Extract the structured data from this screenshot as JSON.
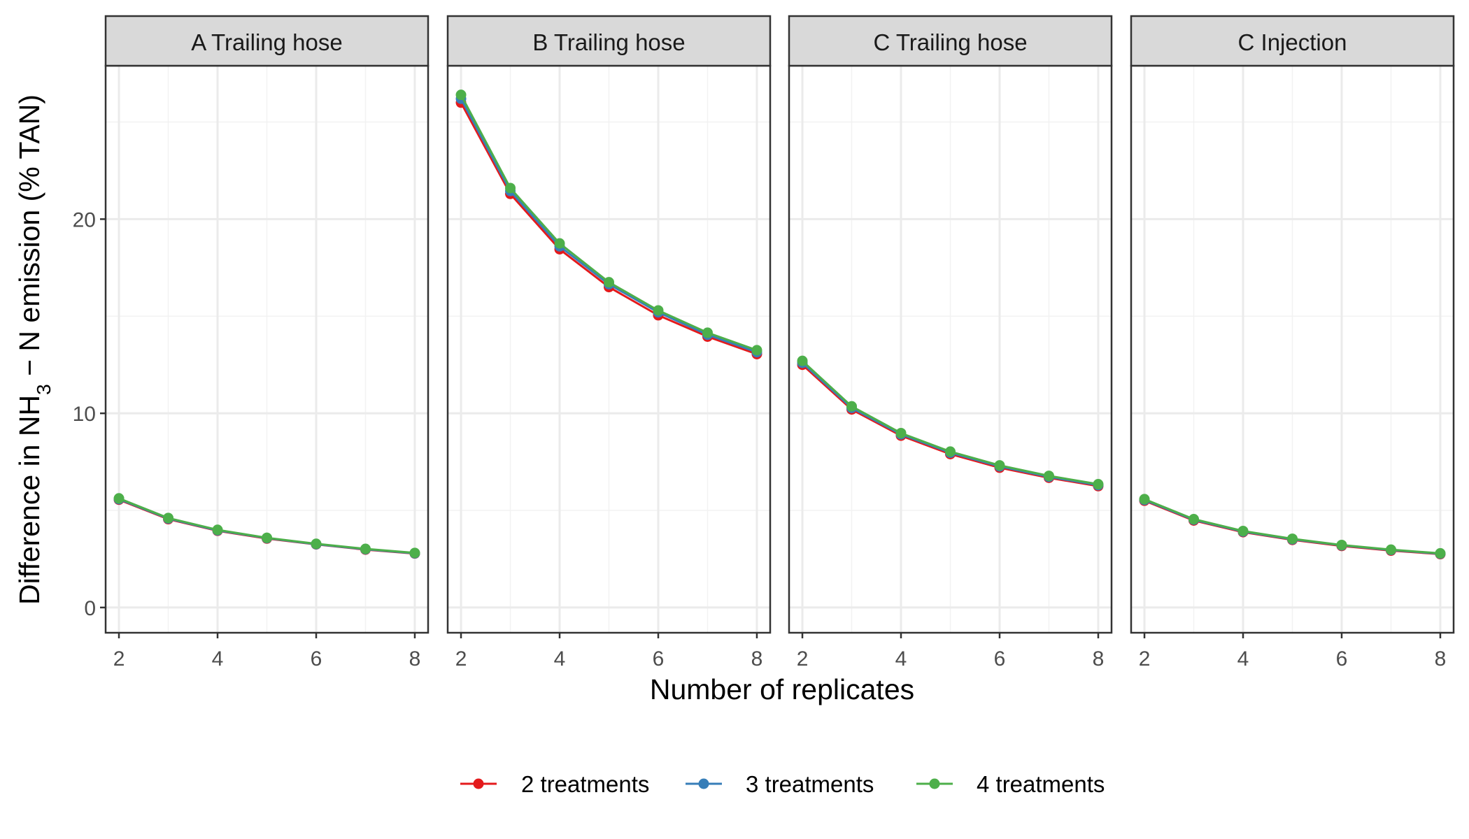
{
  "chart_data": {
    "type": "line",
    "xlabel": "Number of replicates",
    "ylabel": {
      "prefix": "Difference in  NH",
      "subscript": "3",
      "suffix": " − N  emission (% TAN)"
    },
    "ylim": [
      -1.3,
      27.9
    ],
    "y_ticks": [
      0,
      10,
      20
    ],
    "xlim": [
      1.73,
      8.27
    ],
    "x_ticks": [
      2,
      4,
      6,
      8
    ],
    "grid": true,
    "legend_position": "bottom",
    "x": [
      2,
      3,
      4,
      5,
      6,
      7,
      8
    ],
    "series_styles": [
      {
        "name": "2 treatments",
        "color": "#E41A1C"
      },
      {
        "name": "3 treatments",
        "color": "#377EB8"
      },
      {
        "name": "4 treatments",
        "color": "#4DAF4A"
      }
    ],
    "panels": [
      {
        "title": "A Trailing hose",
        "series": [
          {
            "name": "2 treatments",
            "values": [
              5.55,
              4.55,
              3.95,
              3.55,
              3.25,
              2.98,
              2.78
            ]
          },
          {
            "name": "3 treatments",
            "values": [
              5.58,
              4.58,
              3.97,
              3.57,
              3.26,
              3.0,
              2.79
            ]
          },
          {
            "name": "4 treatments",
            "values": [
              5.62,
              4.61,
              4.0,
              3.59,
              3.28,
              3.02,
              2.81
            ]
          }
        ]
      },
      {
        "title": "B Trailing hose",
        "series": [
          {
            "name": "2 treatments",
            "values": [
              26.0,
              21.3,
              18.45,
              16.5,
              15.05,
              13.95,
              13.05
            ]
          },
          {
            "name": "3 treatments",
            "values": [
              26.2,
              21.45,
              18.6,
              16.65,
              15.2,
              14.05,
              13.15
            ]
          },
          {
            "name": "4 treatments",
            "values": [
              26.4,
              21.6,
              18.75,
              16.75,
              15.3,
              14.15,
              13.25
            ]
          }
        ]
      },
      {
        "title": "C Trailing hose",
        "series": [
          {
            "name": "2 treatments",
            "values": [
              12.5,
              10.2,
              8.85,
              7.9,
              7.2,
              6.68,
              6.25
            ]
          },
          {
            "name": "3 treatments",
            "values": [
              12.6,
              10.28,
              8.92,
              7.97,
              7.27,
              6.73,
              6.3
            ]
          },
          {
            "name": "4 treatments",
            "values": [
              12.7,
              10.36,
              8.98,
              8.03,
              7.32,
              6.78,
              6.35
            ]
          }
        ]
      },
      {
        "title": "C Injection",
        "series": [
          {
            "name": "2 treatments",
            "values": [
              5.5,
              4.48,
              3.88,
              3.48,
              3.17,
              2.93,
              2.75
            ]
          },
          {
            "name": "3 treatments",
            "values": [
              5.54,
              4.52,
              3.91,
              3.51,
              3.2,
              2.96,
              2.77
            ]
          },
          {
            "name": "4 treatments",
            "values": [
              5.58,
              4.55,
              3.94,
              3.54,
              3.22,
              2.98,
              2.79
            ]
          }
        ]
      }
    ]
  }
}
